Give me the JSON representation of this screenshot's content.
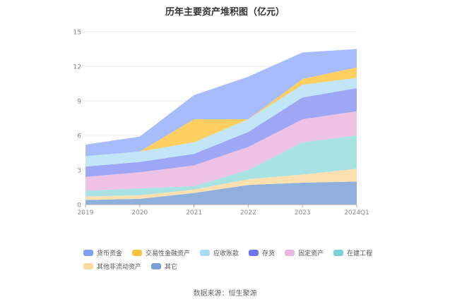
{
  "chart_data": {
    "type": "area",
    "stacked": true,
    "title": "历年主要资产堆积图（亿元）",
    "categories": [
      "2019",
      "2020",
      "2021",
      "2022",
      "2023",
      "2024Q1"
    ],
    "ylim": [
      0,
      15
    ],
    "yticks": [
      0,
      3,
      6,
      9,
      12,
      15
    ],
    "grid": true,
    "legend_position": "bottom",
    "series": [
      {
        "name": "其它",
        "color": "#8fafdc",
        "values": [
          0.4,
          0.5,
          1.0,
          1.7,
          1.9,
          2.0
        ]
      },
      {
        "name": "其他非流动资产",
        "color": "#fde0b0",
        "values": [
          0.3,
          0.3,
          0.3,
          0.5,
          0.7,
          1.1
        ]
      },
      {
        "name": "在建工程",
        "color": "#a9e2e2",
        "values": [
          0.5,
          0.6,
          0.3,
          0.8,
          2.8,
          2.9
        ]
      },
      {
        "name": "固定资产",
        "color": "#edc2e4",
        "values": [
          1.2,
          1.4,
          1.8,
          2.0,
          2.0,
          2.1
        ]
      },
      {
        "name": "存货",
        "color": "#9ea7f5",
        "values": [
          0.9,
          0.9,
          1.0,
          1.3,
          1.9,
          2.0
        ]
      },
      {
        "name": "应收账款",
        "color": "#c0e6f7",
        "values": [
          0.9,
          0.9,
          1.0,
          1.1,
          1.1,
          0.9
        ]
      },
      {
        "name": "交易性金融资产",
        "color": "#fccf60",
        "values": [
          0.0,
          0.0,
          2.0,
          0.0,
          0.5,
          0.9
        ]
      },
      {
        "name": "货币资金",
        "color": "#a7bcfa",
        "values": [
          1.0,
          1.3,
          2.1,
          3.7,
          2.3,
          1.6
        ]
      }
    ],
    "legend_order": [
      "货币资金",
      "交易性金融资产",
      "应收账款",
      "存货",
      "固定资产",
      "在建工程",
      "其他非流动资产",
      "其它"
    ],
    "legend_colors": {
      "货币资金": "#7f9ff2",
      "交易性金融资产": "#f8c23a",
      "应收账款": "#a9ddf5",
      "存货": "#6e74f0",
      "固定资产": "#e8b6e0",
      "在建工程": "#77d4d4",
      "其他非流动资产": "#fcd9a0",
      "其它": "#7e9fd4"
    }
  },
  "source": "数据来源：恒生聚源"
}
